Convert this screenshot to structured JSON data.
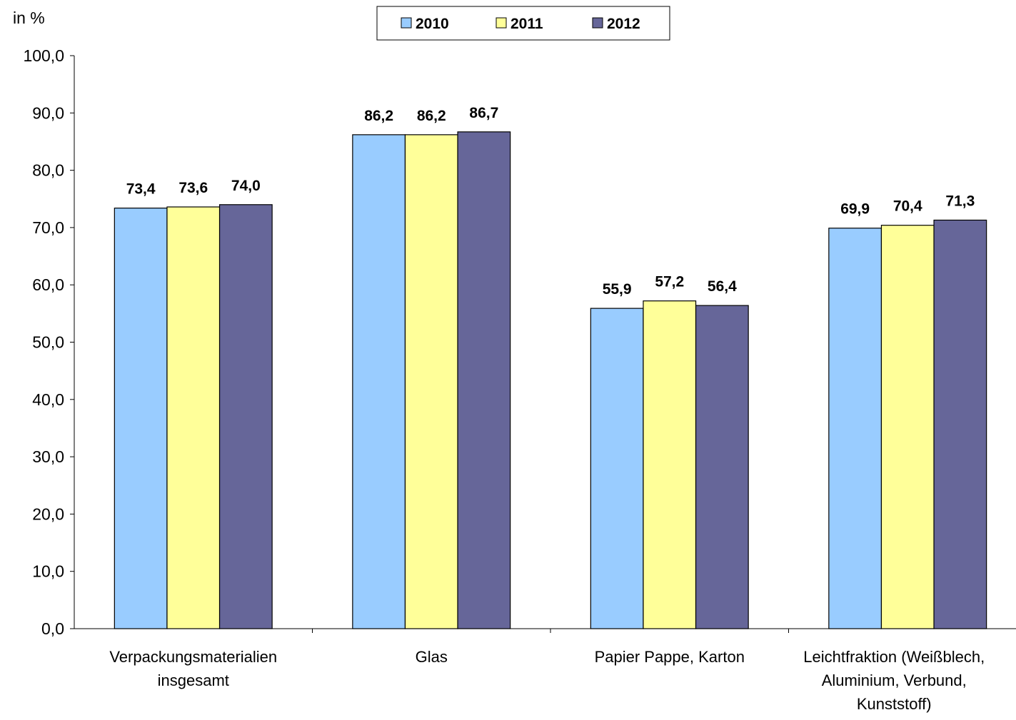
{
  "chart_data": {
    "type": "bar",
    "unit_label": "in %",
    "categories": [
      [
        "Verpackungsmaterialien",
        "insgesamt"
      ],
      [
        "Glas"
      ],
      [
        "Papier Pappe, Karton"
      ],
      [
        "Leichtfraktion (Weißblech,",
        "Aluminium, Verbund,",
        "Kunststoff)"
      ]
    ],
    "series": [
      {
        "name": "2010",
        "color": "#99CCFF",
        "values": [
          73.4,
          86.2,
          55.9,
          69.9
        ],
        "labels": [
          "73,4",
          "86,2",
          "55,9",
          "69,9"
        ]
      },
      {
        "name": "2011",
        "color": "#FFFF99",
        "values": [
          73.6,
          86.2,
          57.2,
          70.4
        ],
        "labels": [
          "73,6",
          "86,2",
          "57,2",
          "70,4"
        ]
      },
      {
        "name": "2012",
        "color": "#666699",
        "values": [
          74.0,
          86.7,
          56.4,
          71.3
        ],
        "labels": [
          "74,0",
          "86,7",
          "56,4",
          "71,3"
        ]
      }
    ],
    "ylim": [
      0,
      100
    ],
    "yticks": [
      0,
      10,
      20,
      30,
      40,
      50,
      60,
      70,
      80,
      90,
      100
    ],
    "ytick_labels": [
      "0,0",
      "10,0",
      "20,0",
      "30,0",
      "40,0",
      "50,0",
      "60,0",
      "70,0",
      "80,0",
      "90,0",
      "100,0"
    ],
    "legend_position": "top-center",
    "grid": false
  }
}
